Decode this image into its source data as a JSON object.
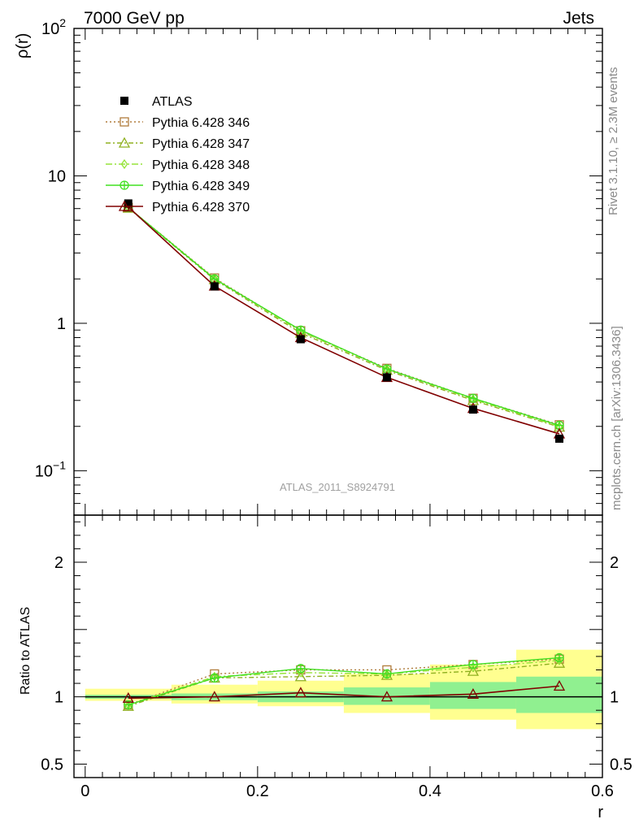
{
  "header": {
    "left_label": "7000 GeV pp",
    "right_label": "Jets"
  },
  "side_labels": {
    "rivet": "Rivet 3.1.10, ≥ 2.3M events",
    "mcplots": "mcplots.cern.ch [arXiv:1306.3436]"
  },
  "analysis_label": "ATLAS_2011_S8924791",
  "colors": {
    "data": "#000000",
    "p346": "#b07c3c",
    "p347": "#8fb020",
    "p348": "#96e43a",
    "p349": "#40e020",
    "p370": "#800000",
    "band_inner": "#90f090",
    "band_outer": "#ffff90"
  },
  "chart_data": [
    {
      "type": "line",
      "panel": "main",
      "ylabel": "ρ(r)",
      "yscale": "log",
      "ylim": [
        0.05,
        100
      ],
      "xlim": [
        -0.013,
        0.6
      ],
      "yticks": [
        {
          "label_base": "10",
          "label_exp": "−1",
          "value": 0.1
        },
        {
          "label_base": "1",
          "label_exp": "",
          "value": 1
        },
        {
          "label_base": "10",
          "label_exp": "",
          "value": 10
        },
        {
          "label_base": "10",
          "label_exp": "2",
          "value": 100
        }
      ],
      "x": [
        0.05,
        0.15,
        0.25,
        0.35,
        0.45,
        0.55
      ],
      "series": [
        {
          "name": "ATLAS",
          "key": "data",
          "marker": "square-filled",
          "values": [
            6.5,
            1.78,
            0.78,
            0.43,
            0.26,
            0.165
          ]
        },
        {
          "name": "Pythia 6.428 346",
          "key": "p346",
          "marker": "square-open",
          "dash": "2,3",
          "values": [
            6.1,
            2.03,
            0.89,
            0.495,
            0.31,
            0.205
          ]
        },
        {
          "name": "Pythia 6.428 347",
          "key": "p347",
          "marker": "triangle-open",
          "dash": "6,3,2,3",
          "values": [
            6.05,
            1.98,
            0.86,
            0.48,
            0.3,
            0.198
          ]
        },
        {
          "name": "Pythia 6.428 348",
          "key": "p348",
          "marker": "diamond-open",
          "dash": "8,3,2,3",
          "values": [
            6.1,
            2.01,
            0.88,
            0.49,
            0.305,
            0.2
          ]
        },
        {
          "name": "Pythia 6.428 349",
          "key": "p349",
          "marker": "cross-circle",
          "dash": "",
          "values": [
            6.1,
            2.0,
            0.9,
            0.49,
            0.31,
            0.203
          ]
        },
        {
          "name": "Pythia 6.428 370",
          "key": "p370",
          "marker": "triangle-open",
          "dash": "",
          "values": [
            6.15,
            1.79,
            0.8,
            0.43,
            0.265,
            0.178
          ]
        }
      ]
    },
    {
      "type": "line",
      "panel": "ratio",
      "xlabel": "r",
      "ylabel": "Ratio to ATLAS",
      "ylim": [
        0.4,
        2.35
      ],
      "xlim": [
        -0.013,
        0.6
      ],
      "xticks": [
        {
          "label": "0",
          "value": 0
        },
        {
          "label": "0.2",
          "value": 0.2
        },
        {
          "label": "0.4",
          "value": 0.4
        },
        {
          "label": "0.6",
          "value": 0.6
        }
      ],
      "yticks": [
        {
          "label": "0.5",
          "value": 0.5
        },
        {
          "label": "1",
          "value": 1
        },
        {
          "label": "2",
          "value": 2
        }
      ],
      "x": [
        0.05,
        0.15,
        0.25,
        0.35,
        0.45,
        0.55
      ],
      "bands": [
        {
          "x0": 0.0,
          "x1": 0.1,
          "inner": [
            0.985,
            1.015
          ],
          "outer": [
            0.97,
            1.06
          ]
        },
        {
          "x0": 0.1,
          "x1": 0.2,
          "inner": [
            0.975,
            1.025
          ],
          "outer": [
            0.95,
            1.09
          ]
        },
        {
          "x0": 0.2,
          "x1": 0.3,
          "inner": [
            0.96,
            1.04
          ],
          "outer": [
            0.93,
            1.12
          ]
        },
        {
          "x0": 0.3,
          "x1": 0.4,
          "inner": [
            0.94,
            1.07
          ],
          "outer": [
            0.88,
            1.17
          ]
        },
        {
          "x0": 0.4,
          "x1": 0.5,
          "inner": [
            0.91,
            1.11
          ],
          "outer": [
            0.83,
            1.24
          ]
        },
        {
          "x0": 0.5,
          "x1": 0.6,
          "inner": [
            0.88,
            1.15
          ],
          "outer": [
            0.76,
            1.35
          ]
        }
      ],
      "series": [
        {
          "name": "Pythia 6.428 346",
          "key": "p346",
          "marker": "square-open",
          "dash": "2,3",
          "values": [
            0.94,
            1.17,
            1.2,
            1.2,
            1.24,
            1.28
          ]
        },
        {
          "name": "Pythia 6.428 347",
          "key": "p347",
          "marker": "triangle-open",
          "dash": "6,3,2,3",
          "values": [
            0.93,
            1.14,
            1.15,
            1.16,
            1.19,
            1.25
          ]
        },
        {
          "name": "Pythia 6.428 348",
          "key": "p348",
          "marker": "diamond-open",
          "dash": "8,3,2,3",
          "values": [
            0.94,
            1.15,
            1.18,
            1.17,
            1.22,
            1.27
          ]
        },
        {
          "name": "Pythia 6.428 349",
          "key": "p349",
          "marker": "cross-circle",
          "dash": "",
          "values": [
            0.94,
            1.14,
            1.21,
            1.17,
            1.24,
            1.29
          ]
        },
        {
          "name": "Pythia 6.428 370",
          "key": "p370",
          "marker": "triangle-open",
          "dash": "",
          "values": [
            0.99,
            1.0,
            1.03,
            1.0,
            1.02,
            1.08
          ]
        }
      ]
    }
  ]
}
